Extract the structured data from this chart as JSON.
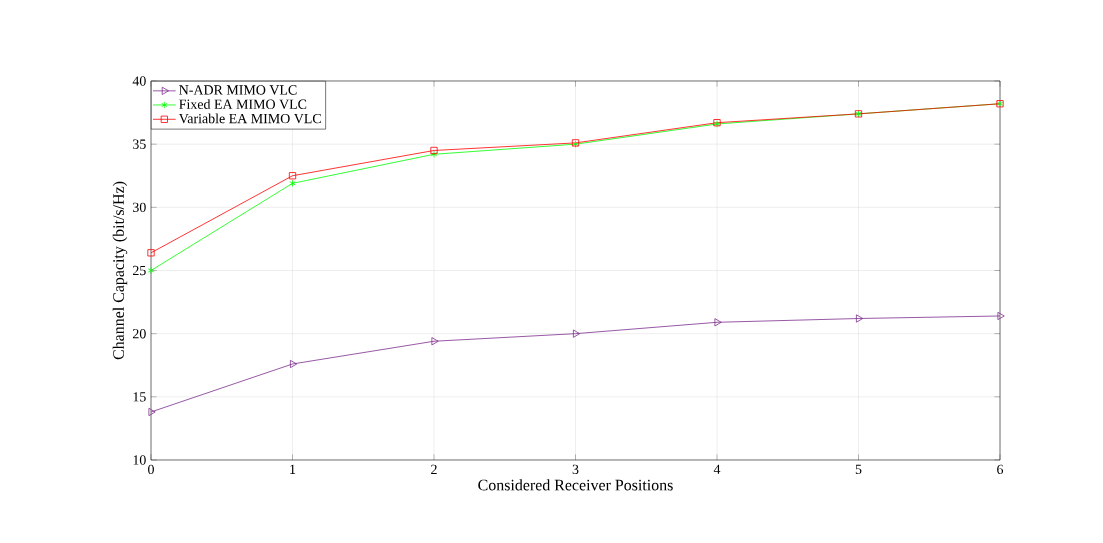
{
  "chart_data": {
    "type": "line",
    "xlabel": "Considered Receiver Positions",
    "ylabel": "Channel Capacity (bit/s/Hz)",
    "x": [
      0,
      1,
      2,
      3,
      4,
      5,
      6
    ],
    "xlim": [
      0,
      6
    ],
    "xticks": [
      0,
      1,
      2,
      3,
      4,
      5,
      6
    ],
    "ylim": [
      10,
      40
    ],
    "yticks": [
      10,
      15,
      20,
      25,
      30,
      35,
      40
    ],
    "grid": true,
    "legend": "top left",
    "line_style": "solid",
    "series": [
      {
        "name": "N-ADR MIMO VLC",
        "color": "#7e2f8e",
        "marker": "triangle",
        "values": [
          13.8,
          17.6,
          19.4,
          20.0,
          20.9,
          21.2,
          21.4
        ]
      },
      {
        "name": "Fixed EA MIMO VLC",
        "color": "#00ff00",
        "marker": "cross",
        "values": [
          25.0,
          31.9,
          34.2,
          35.0,
          36.6,
          37.4,
          38.2
        ]
      },
      {
        "name": "Variable EA MIMO VLC",
        "color": "#ff0000",
        "marker": "square",
        "values": [
          26.4,
          32.5,
          34.5,
          35.1,
          36.7,
          37.4,
          38.2
        ]
      }
    ]
  }
}
